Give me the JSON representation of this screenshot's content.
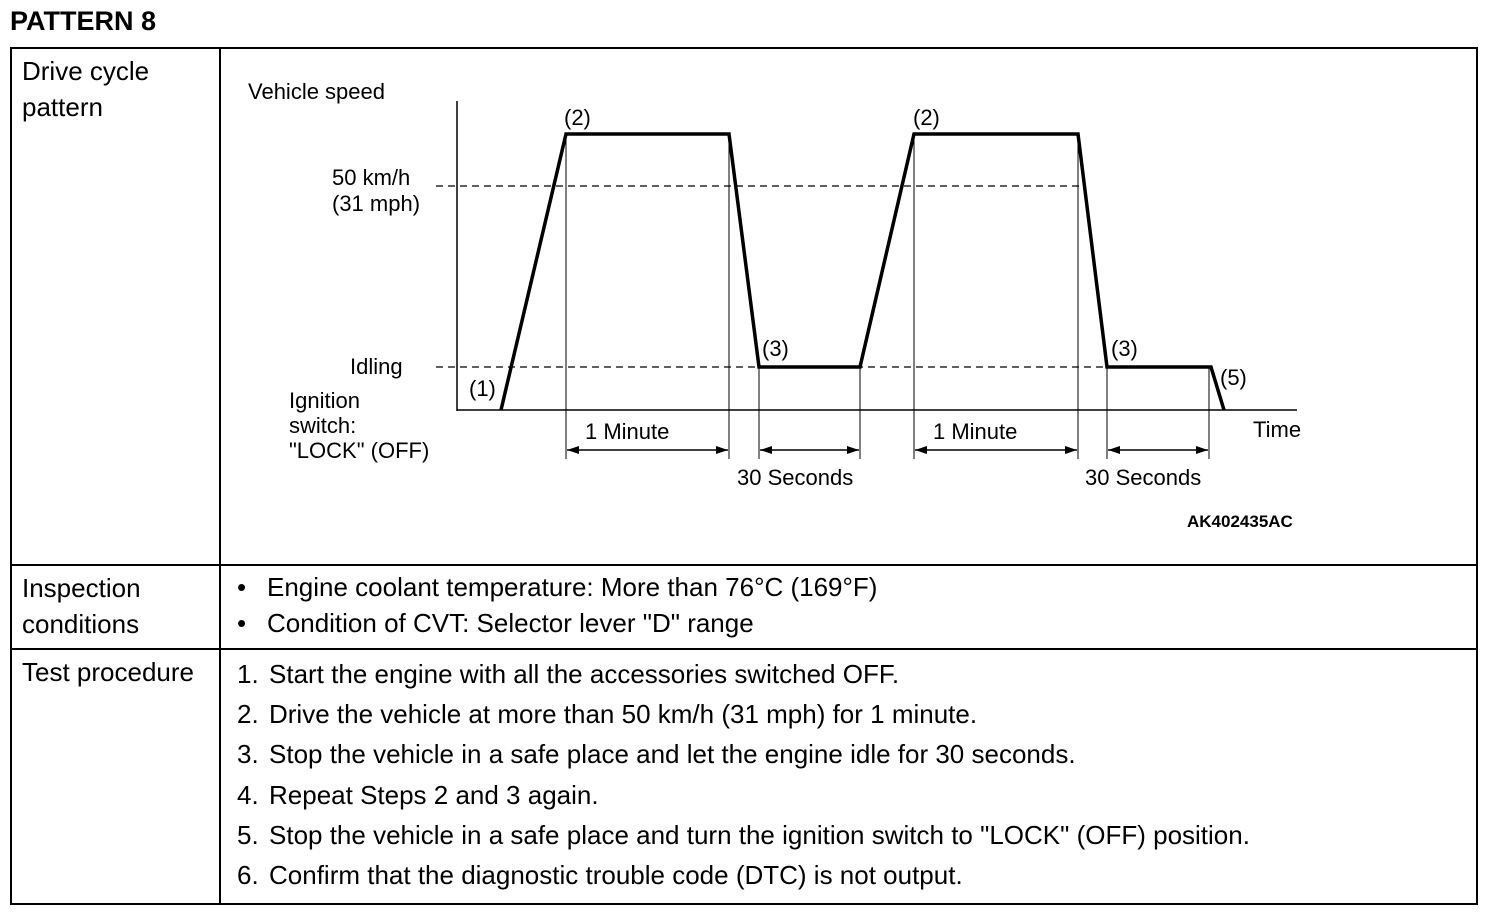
{
  "title": "PATTERN 8",
  "rows": {
    "drive_cycle_label": "Drive cycle pattern",
    "inspection_label": "Inspection conditions",
    "test_label": "Test procedure"
  },
  "diagram": {
    "y_axis_label": "Vehicle speed",
    "x_axis_label": "Time",
    "speed_label_line1": "50 km/h",
    "speed_label_line2": "(31 mph)",
    "idling_label": "Idling",
    "ignition_line1": "Ignition",
    "ignition_line2": "switch:",
    "ignition_line3": "\"LOCK\" (OFF)",
    "marker_1": "(1)",
    "marker_2": "(2)",
    "marker_3": "(3)",
    "marker_5": "(5)",
    "interval_1min": "1 Minute",
    "interval_30s": "30 Seconds",
    "figure_code": "AK402435AC"
  },
  "inspection_conditions": [
    "Engine coolant temperature: More than 76°C (169°F)",
    "Condition of CVT: Selector lever \"D\" range"
  ],
  "test_procedure": [
    {
      "num": "1.",
      "text": "Start the engine with all the accessories switched OFF."
    },
    {
      "num": "2.",
      "text": "Drive the vehicle at more than 50 km/h (31 mph) for 1 minute."
    },
    {
      "num": "3.",
      "text": "Stop the vehicle in a safe place and let the engine idle for 30 seconds."
    },
    {
      "num": "4.",
      "text": "Repeat Steps 2 and 3 again."
    },
    {
      "num": "5.",
      "text": "Stop the vehicle in a safe place and turn the ignition switch to \"LOCK\" (OFF) position."
    },
    {
      "num": "6.",
      "text": "Confirm that the diagnostic trouble code (DTC) is not output."
    }
  ]
}
